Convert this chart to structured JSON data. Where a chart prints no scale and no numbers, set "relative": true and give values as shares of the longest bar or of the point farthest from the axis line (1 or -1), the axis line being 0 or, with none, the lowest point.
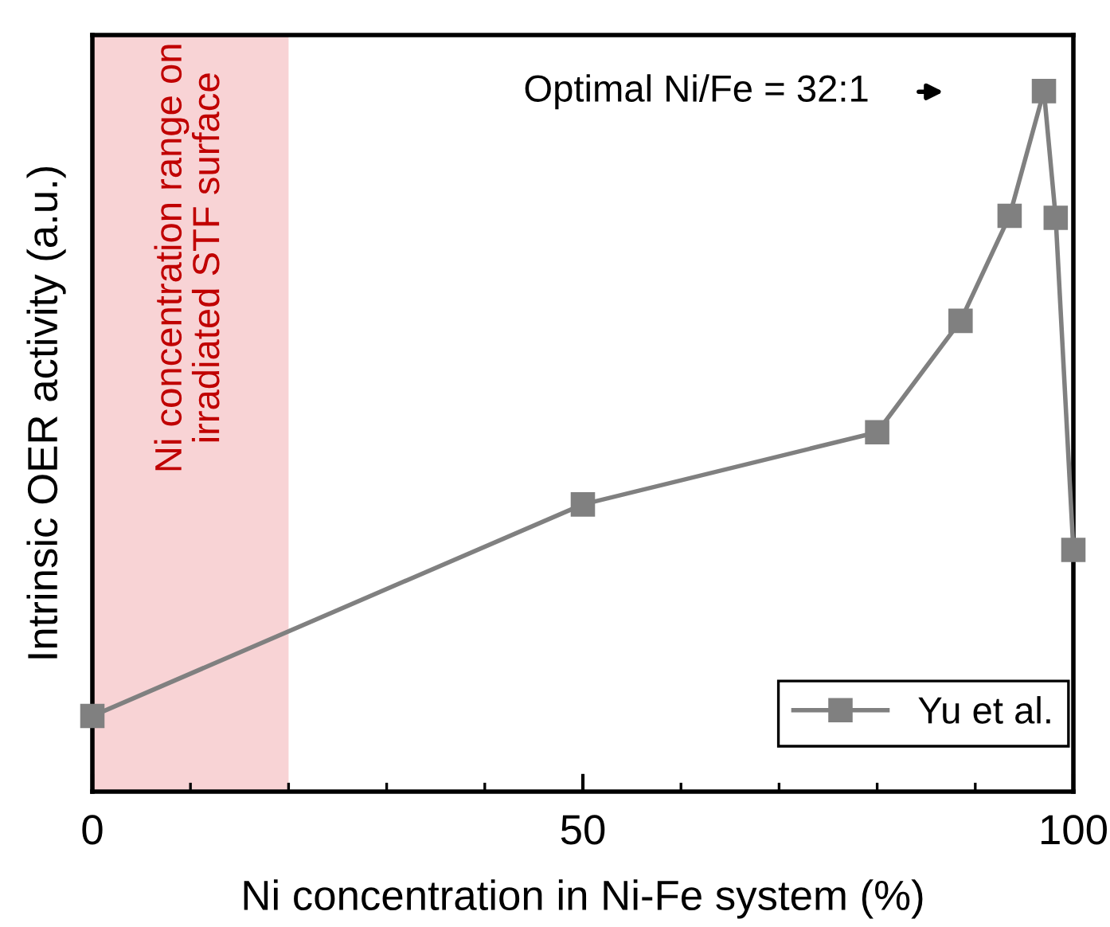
{
  "chart_data": {
    "type": "line",
    "relative": true,
    "xlabel": "Ni concentration in Ni-Fe system (%)",
    "ylabel": "Intrinsic OER activity (a.u.)",
    "xlim": [
      0,
      100
    ],
    "xticks": [
      0,
      {
        "value": 10,
        "label": null
      },
      {
        "value": 20,
        "label": null
      },
      {
        "value": 30,
        "label": null
      },
      {
        "value": 40,
        "label": null
      },
      50,
      {
        "value": 60,
        "label": null
      },
      {
        "value": 70,
        "label": null
      },
      {
        "value": 80,
        "label": null
      },
      {
        "value": 90,
        "label": null
      },
      100
    ],
    "tick_labels": "x",
    "marker": "square",
    "line_style": "solid",
    "grid": false,
    "legend": "bottom right",
    "series": [
      {
        "name": "Yu et al.",
        "color": "#808080",
        "x": [
          0,
          50,
          80,
          88.5,
          93.5,
          97,
          98.2,
          100
        ],
        "values": [
          0.108,
          0.41,
          0.513,
          0.672,
          0.822,
          1,
          0.819,
          0.345
        ]
      }
    ],
    "bands": [
      {
        "axis": "x",
        "from": 0,
        "to": 20,
        "label": "Ni concentration range on\nirradiated STF surface",
        "color": "#f8d3d5"
      }
    ],
    "annotations": [
      "Optimal Ni/Fe = 32:1"
    ]
  }
}
